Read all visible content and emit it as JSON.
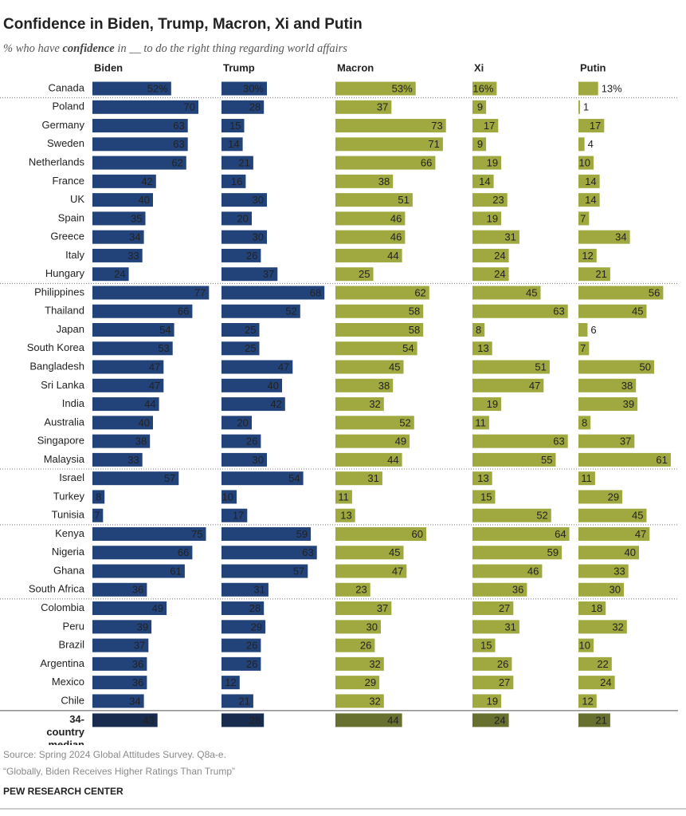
{
  "chart_data": {
    "type": "bar",
    "title": "Confidence in Biden, Trump, Macron, Xi and Putin",
    "subtitle_parts": [
      "% who have ",
      "confidence",
      " in __ to do the right thing regarding world affairs"
    ],
    "categories": [
      "Canada",
      "Poland",
      "Germany",
      "Sweden",
      "Netherlands",
      "France",
      "UK",
      "Spain",
      "Greece",
      "Italy",
      "Hungary",
      "Philippines",
      "Thailand",
      "Japan",
      "South Korea",
      "Bangladesh",
      "Sri Lanka",
      "India",
      "Australia",
      "Singapore",
      "Malaysia",
      "Israel",
      "Turkey",
      "Tunisia",
      "Kenya",
      "Nigeria",
      "Ghana",
      "South Africa",
      "Colombia",
      "Peru",
      "Brazil",
      "Argentina",
      "Mexico",
      "Chile",
      "34-country median"
    ],
    "series": [
      {
        "name": "Biden",
        "color": "#22437a",
        "median_color": "#172c4f",
        "values": [
          52,
          70,
          63,
          63,
          62,
          42,
          40,
          35,
          34,
          33,
          24,
          77,
          66,
          54,
          53,
          47,
          47,
          44,
          40,
          38,
          33,
          57,
          8,
          7,
          75,
          66,
          61,
          36,
          49,
          39,
          37,
          36,
          36,
          34,
          43
        ],
        "value_labels": [
          "52%",
          "70",
          "63",
          "63",
          "62",
          "42",
          "40",
          "35",
          "34",
          "33",
          "24",
          "77",
          "66",
          "54",
          "53",
          "47",
          "47",
          "44",
          "40",
          "38",
          "33",
          "57",
          "8",
          "7",
          "75",
          "66",
          "61",
          "36",
          "49",
          "39",
          "37",
          "36",
          "36",
          "34",
          "43"
        ]
      },
      {
        "name": "Trump",
        "color": "#22437a",
        "median_color": "#172c4f",
        "values": [
          30,
          28,
          15,
          14,
          21,
          16,
          30,
          20,
          30,
          26,
          37,
          68,
          52,
          25,
          25,
          47,
          40,
          42,
          20,
          26,
          30,
          54,
          10,
          17,
          59,
          63,
          57,
          31,
          28,
          29,
          26,
          26,
          12,
          21,
          28
        ],
        "value_labels": [
          "30%",
          "28",
          "15",
          "14",
          "21",
          "16",
          "30",
          "20",
          "30",
          "26",
          "37",
          "68",
          "52",
          "25",
          "25",
          "47",
          "40",
          "42",
          "20",
          "26",
          "30",
          "54",
          "10",
          "17",
          "59",
          "63",
          "57",
          "31",
          "28",
          "29",
          "26",
          "26",
          "12",
          "21",
          "28"
        ]
      },
      {
        "name": "Macron",
        "color": "#a0a93f",
        "median_color": "#687030",
        "values": [
          53,
          37,
          73,
          71,
          66,
          38,
          51,
          46,
          46,
          44,
          25,
          62,
          58,
          58,
          54,
          45,
          38,
          32,
          52,
          49,
          44,
          31,
          11,
          13,
          60,
          45,
          47,
          23,
          37,
          30,
          26,
          32,
          29,
          32,
          44
        ],
        "value_labels": [
          "53%",
          "37",
          "73",
          "71",
          "66",
          "38",
          "51",
          "46",
          "46",
          "44",
          "25",
          "62",
          "58",
          "58",
          "54",
          "45",
          "38",
          "32",
          "52",
          "49",
          "44",
          "31",
          "11",
          "13",
          "60",
          "45",
          "47",
          "23",
          "37",
          "30",
          "26",
          "32",
          "29",
          "32",
          "44"
        ]
      },
      {
        "name": "Xi",
        "color": "#a0a93f",
        "median_color": "#687030",
        "values": [
          16,
          9,
          17,
          9,
          19,
          14,
          23,
          19,
          31,
          24,
          24,
          45,
          63,
          8,
          13,
          51,
          47,
          19,
          11,
          63,
          55,
          13,
          15,
          52,
          64,
          59,
          46,
          36,
          27,
          31,
          15,
          26,
          27,
          19,
          24
        ],
        "value_labels": [
          "16%",
          "9",
          "17",
          "9",
          "19",
          "14",
          "23",
          "19",
          "31",
          "24",
          "24",
          "45",
          "63",
          "8",
          "13",
          "51",
          "47",
          "19",
          "11",
          "63",
          "55",
          "13",
          "15",
          "52",
          "64",
          "59",
          "46",
          "36",
          "27",
          "31",
          "15",
          "26",
          "27",
          "19",
          "24"
        ]
      },
      {
        "name": "Putin",
        "color": "#a0a93f",
        "median_color": "#687030",
        "values": [
          13,
          1,
          17,
          4,
          10,
          14,
          14,
          7,
          34,
          12,
          21,
          56,
          45,
          6,
          7,
          50,
          38,
          39,
          8,
          37,
          61,
          11,
          29,
          45,
          47,
          40,
          33,
          30,
          18,
          32,
          10,
          22,
          24,
          12,
          21
        ],
        "value_labels": [
          "13%",
          "1",
          "17",
          "4",
          "10",
          "14",
          "14",
          "7",
          "34",
          "12",
          "21",
          "56",
          "45",
          "6",
          "7",
          "50",
          "38",
          "39",
          "8",
          "37",
          "61",
          "11",
          "29",
          "45",
          "47",
          "40",
          "33",
          "30",
          "18",
          "32",
          "10",
          "22",
          "24",
          "12",
          "21"
        ]
      }
    ],
    "source_lines": [
      "Source: Spring 2024 Global Attitudes Survey. Q8a-e.",
      "“Globally, Biden Receives Higher Ratings Than Trump”"
    ],
    "footer": "PEW RESEARCH CENTER"
  }
}
